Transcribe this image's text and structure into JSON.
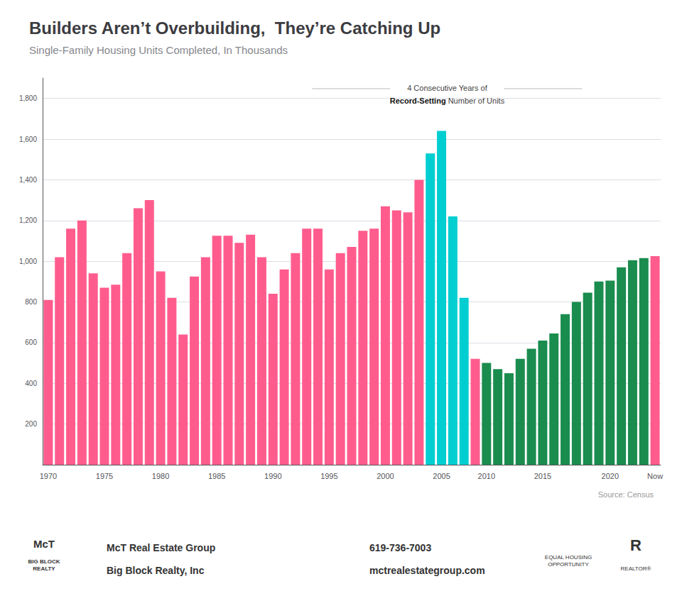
{
  "chart_data": {
    "type": "bar",
    "title": "Builders Aren’t Overbuilding,  They’re Catching Up",
    "subtitle": "Single-Family Housing Units Completed, In Thousands",
    "annotation": [
      "4 Consecutive Years of",
      [
        "Record-Setting",
        " Number of Units"
      ]
    ],
    "source": "Source: Census",
    "footer": [
      "McT",
      "BIG BLOCK\nREALTY",
      "McT Real Estate Group",
      "Big Block Realty, Inc",
      "619-736-7003",
      "mctrealestategroup.com",
      "EQUAL HOUSING\nOPPORTUNITY",
      "R",
      "REALTOR®"
    ],
    "categories": [
      "1970",
      null,
      null,
      null,
      null,
      "1975",
      null,
      null,
      null,
      null,
      "1980",
      null,
      null,
      null,
      null,
      "1985",
      null,
      null,
      null,
      null,
      "1990",
      null,
      null,
      null,
      null,
      "1995",
      null,
      null,
      null,
      null,
      "2000",
      null,
      null,
      null,
      null,
      "2005",
      null,
      null,
      null,
      "2010",
      null,
      null,
      null,
      null,
      "2015",
      null,
      null,
      null,
      null,
      null,
      "2020",
      null,
      null,
      null,
      "Now"
    ],
    "values": [
      810,
      1020,
      1160,
      1200,
      940,
      870,
      885,
      1040,
      1260,
      1300,
      950,
      820,
      640,
      925,
      1020,
      1125,
      1125,
      1090,
      1130,
      1020,
      840,
      960,
      1040,
      1160,
      1160,
      960,
      1040,
      1070,
      1150,
      1160,
      1270,
      1250,
      1240,
      1400,
      1530,
      1640,
      1220,
      820,
      520,
      500,
      470,
      450,
      520,
      570,
      610,
      645,
      740,
      800,
      845,
      900,
      905,
      970,
      1005,
      1015,
      1025
    ],
    "colors": [
      "#FF5C8D",
      "#FF5C8D",
      "#FF5C8D",
      "#FF5C8D",
      "#FF5C8D",
      "#FF5C8D",
      "#FF5C8D",
      "#FF5C8D",
      "#FF5C8D",
      "#FF5C8D",
      "#FF5C8D",
      "#FF5C8D",
      "#FF5C8D",
      "#FF5C8D",
      "#FF5C8D",
      "#FF5C8D",
      "#FF5C8D",
      "#FF5C8D",
      "#FF5C8D",
      "#FF5C8D",
      "#FF5C8D",
      "#FF5C8D",
      "#FF5C8D",
      "#FF5C8D",
      "#FF5C8D",
      "#FF5C8D",
      "#FF5C8D",
      "#FF5C8D",
      "#FF5C8D",
      "#FF5C8D",
      "#FF5C8D",
      "#FF5C8D",
      "#FF5C8D",
      "#FF5C8D",
      "#00CED1",
      "#00CED1",
      "#00CED1",
      "#00CED1",
      "#FF5C8D",
      "#1A8C4E",
      "#1A8C4E",
      "#1A8C4E",
      "#1A8C4E",
      "#1A8C4E",
      "#1A8C4E",
      "#1A8C4E",
      "#1A8C4E",
      "#1A8C4E",
      "#1A8C4E",
      "#1A8C4E",
      "#1A8C4E",
      "#1A8C4E",
      "#1A8C4E",
      "#1A8C4E",
      "#FF5C8D"
    ],
    "ylim": [
      0,
      1900
    ],
    "yticks": [
      200,
      400,
      600,
      800,
      {
        "value": 1000,
        "label": "1,000"
      },
      {
        "value": 1200,
        "label": "1,200"
      },
      {
        "value": 1400,
        "label": "1,400"
      },
      {
        "value": 1600,
        "label": "1,600"
      },
      {
        "value": 1800,
        "label": "1,800"
      }
    ],
    "grid": true
  }
}
